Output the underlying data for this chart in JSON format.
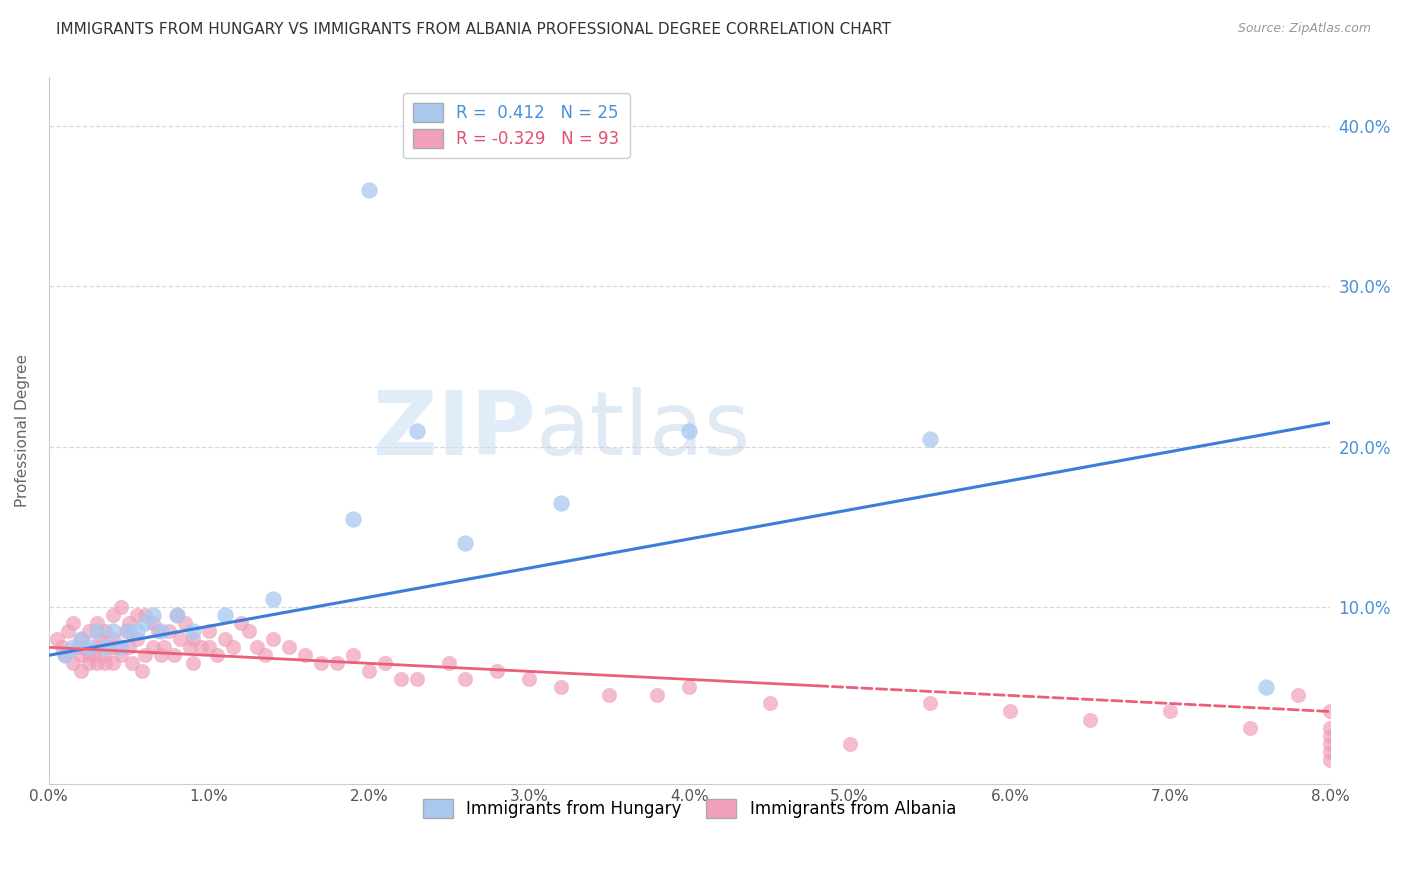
{
  "title": "IMMIGRANTS FROM HUNGARY VS IMMIGRANTS FROM ALBANIA PROFESSIONAL DEGREE CORRELATION CHART",
  "source": "Source: ZipAtlas.com",
  "ylabel": "Professional Degree",
  "x_tick_labels": [
    "0.0%",
    "1.0%",
    "2.0%",
    "3.0%",
    "4.0%",
    "5.0%",
    "6.0%",
    "7.0%",
    "8.0%"
  ],
  "x_tick_values": [
    0.0,
    1.0,
    2.0,
    3.0,
    4.0,
    5.0,
    6.0,
    7.0,
    8.0
  ],
  "y_tick_labels": [
    "10.0%",
    "20.0%",
    "30.0%",
    "40.0%"
  ],
  "y_tick_values": [
    10.0,
    20.0,
    30.0,
    40.0
  ],
  "xlim": [
    0.0,
    8.0
  ],
  "ylim": [
    -1.0,
    43.0
  ],
  "hungary_R": 0.412,
  "hungary_N": 25,
  "albania_R": -0.329,
  "albania_N": 93,
  "hungary_color": "#A8C8F0",
  "albania_color": "#F0A0B8",
  "hungary_line_color": "#3B7DD8",
  "albania_line_color": "#E8607A",
  "legend_hungary": "Immigrants from Hungary",
  "legend_albania": "Immigrants from Albania",
  "hungary_x": [
    0.1,
    0.15,
    0.2,
    0.25,
    0.3,
    0.35,
    0.4,
    0.45,
    0.5,
    0.55,
    0.6,
    0.65,
    0.7,
    0.8,
    0.9,
    1.1,
    1.4,
    1.9,
    2.3,
    2.6,
    3.2,
    4.0,
    5.5,
    7.6,
    2.0
  ],
  "hungary_y": [
    7.0,
    7.5,
    8.0,
    7.5,
    8.5,
    7.5,
    8.5,
    7.5,
    8.5,
    8.5,
    9.0,
    9.5,
    8.5,
    9.5,
    8.5,
    9.5,
    10.5,
    15.5,
    21.0,
    14.0,
    16.5,
    21.0,
    20.5,
    5.0,
    36.0
  ],
  "albania_x": [
    0.05,
    0.08,
    0.1,
    0.12,
    0.15,
    0.15,
    0.18,
    0.2,
    0.2,
    0.2,
    0.22,
    0.25,
    0.25,
    0.25,
    0.28,
    0.3,
    0.3,
    0.3,
    0.32,
    0.35,
    0.35,
    0.35,
    0.38,
    0.4,
    0.4,
    0.4,
    0.42,
    0.45,
    0.45,
    0.48,
    0.5,
    0.5,
    0.52,
    0.55,
    0.55,
    0.58,
    0.6,
    0.6,
    0.65,
    0.65,
    0.68,
    0.7,
    0.72,
    0.75,
    0.78,
    0.8,
    0.82,
    0.85,
    0.88,
    0.9,
    0.9,
    0.95,
    1.0,
    1.0,
    1.05,
    1.1,
    1.15,
    1.2,
    1.25,
    1.3,
    1.35,
    1.4,
    1.5,
    1.6,
    1.7,
    1.8,
    1.9,
    2.0,
    2.1,
    2.2,
    2.3,
    2.5,
    2.6,
    2.8,
    3.0,
    3.2,
    3.5,
    3.8,
    4.0,
    4.5,
    5.0,
    5.5,
    6.0,
    6.5,
    7.0,
    7.5,
    7.8,
    8.0,
    8.0,
    8.0,
    8.0,
    8.0,
    8.0
  ],
  "albania_y": [
    8.0,
    7.5,
    7.0,
    8.5,
    6.5,
    9.0,
    7.5,
    7.0,
    8.0,
    6.0,
    7.5,
    7.0,
    6.5,
    8.5,
    7.0,
    9.0,
    7.5,
    6.5,
    8.0,
    7.0,
    8.5,
    6.5,
    7.5,
    9.5,
    8.0,
    6.5,
    7.5,
    10.0,
    7.0,
    8.5,
    7.5,
    9.0,
    6.5,
    9.5,
    8.0,
    6.0,
    9.5,
    7.0,
    9.0,
    7.5,
    8.5,
    7.0,
    7.5,
    8.5,
    7.0,
    9.5,
    8.0,
    9.0,
    7.5,
    8.0,
    6.5,
    7.5,
    7.5,
    8.5,
    7.0,
    8.0,
    7.5,
    9.0,
    8.5,
    7.5,
    7.0,
    8.0,
    7.5,
    7.0,
    6.5,
    6.5,
    7.0,
    6.0,
    6.5,
    5.5,
    5.5,
    6.5,
    5.5,
    6.0,
    5.5,
    5.0,
    4.5,
    4.5,
    5.0,
    4.0,
    1.5,
    4.0,
    3.5,
    3.0,
    3.5,
    2.5,
    4.5,
    2.0,
    3.5,
    2.5,
    1.5,
    1.0,
    0.5
  ],
  "hungary_line_x0": 0.0,
  "hungary_line_y0": 7.0,
  "hungary_line_x1": 8.0,
  "hungary_line_y1": 21.5,
  "albania_line_x0": 0.0,
  "albania_line_y0": 7.5,
  "albania_line_x1": 8.0,
  "albania_line_y1": 3.5,
  "albania_solid_end": 4.8,
  "watermark_zip": "ZIP",
  "watermark_atlas": "atlas",
  "background_color": "#ffffff",
  "grid_color": "#d8d8d8",
  "title_fontsize": 11,
  "axis_label_fontsize": 11,
  "tick_fontsize": 11,
  "legend_fontsize": 11,
  "source_fontsize": 9
}
